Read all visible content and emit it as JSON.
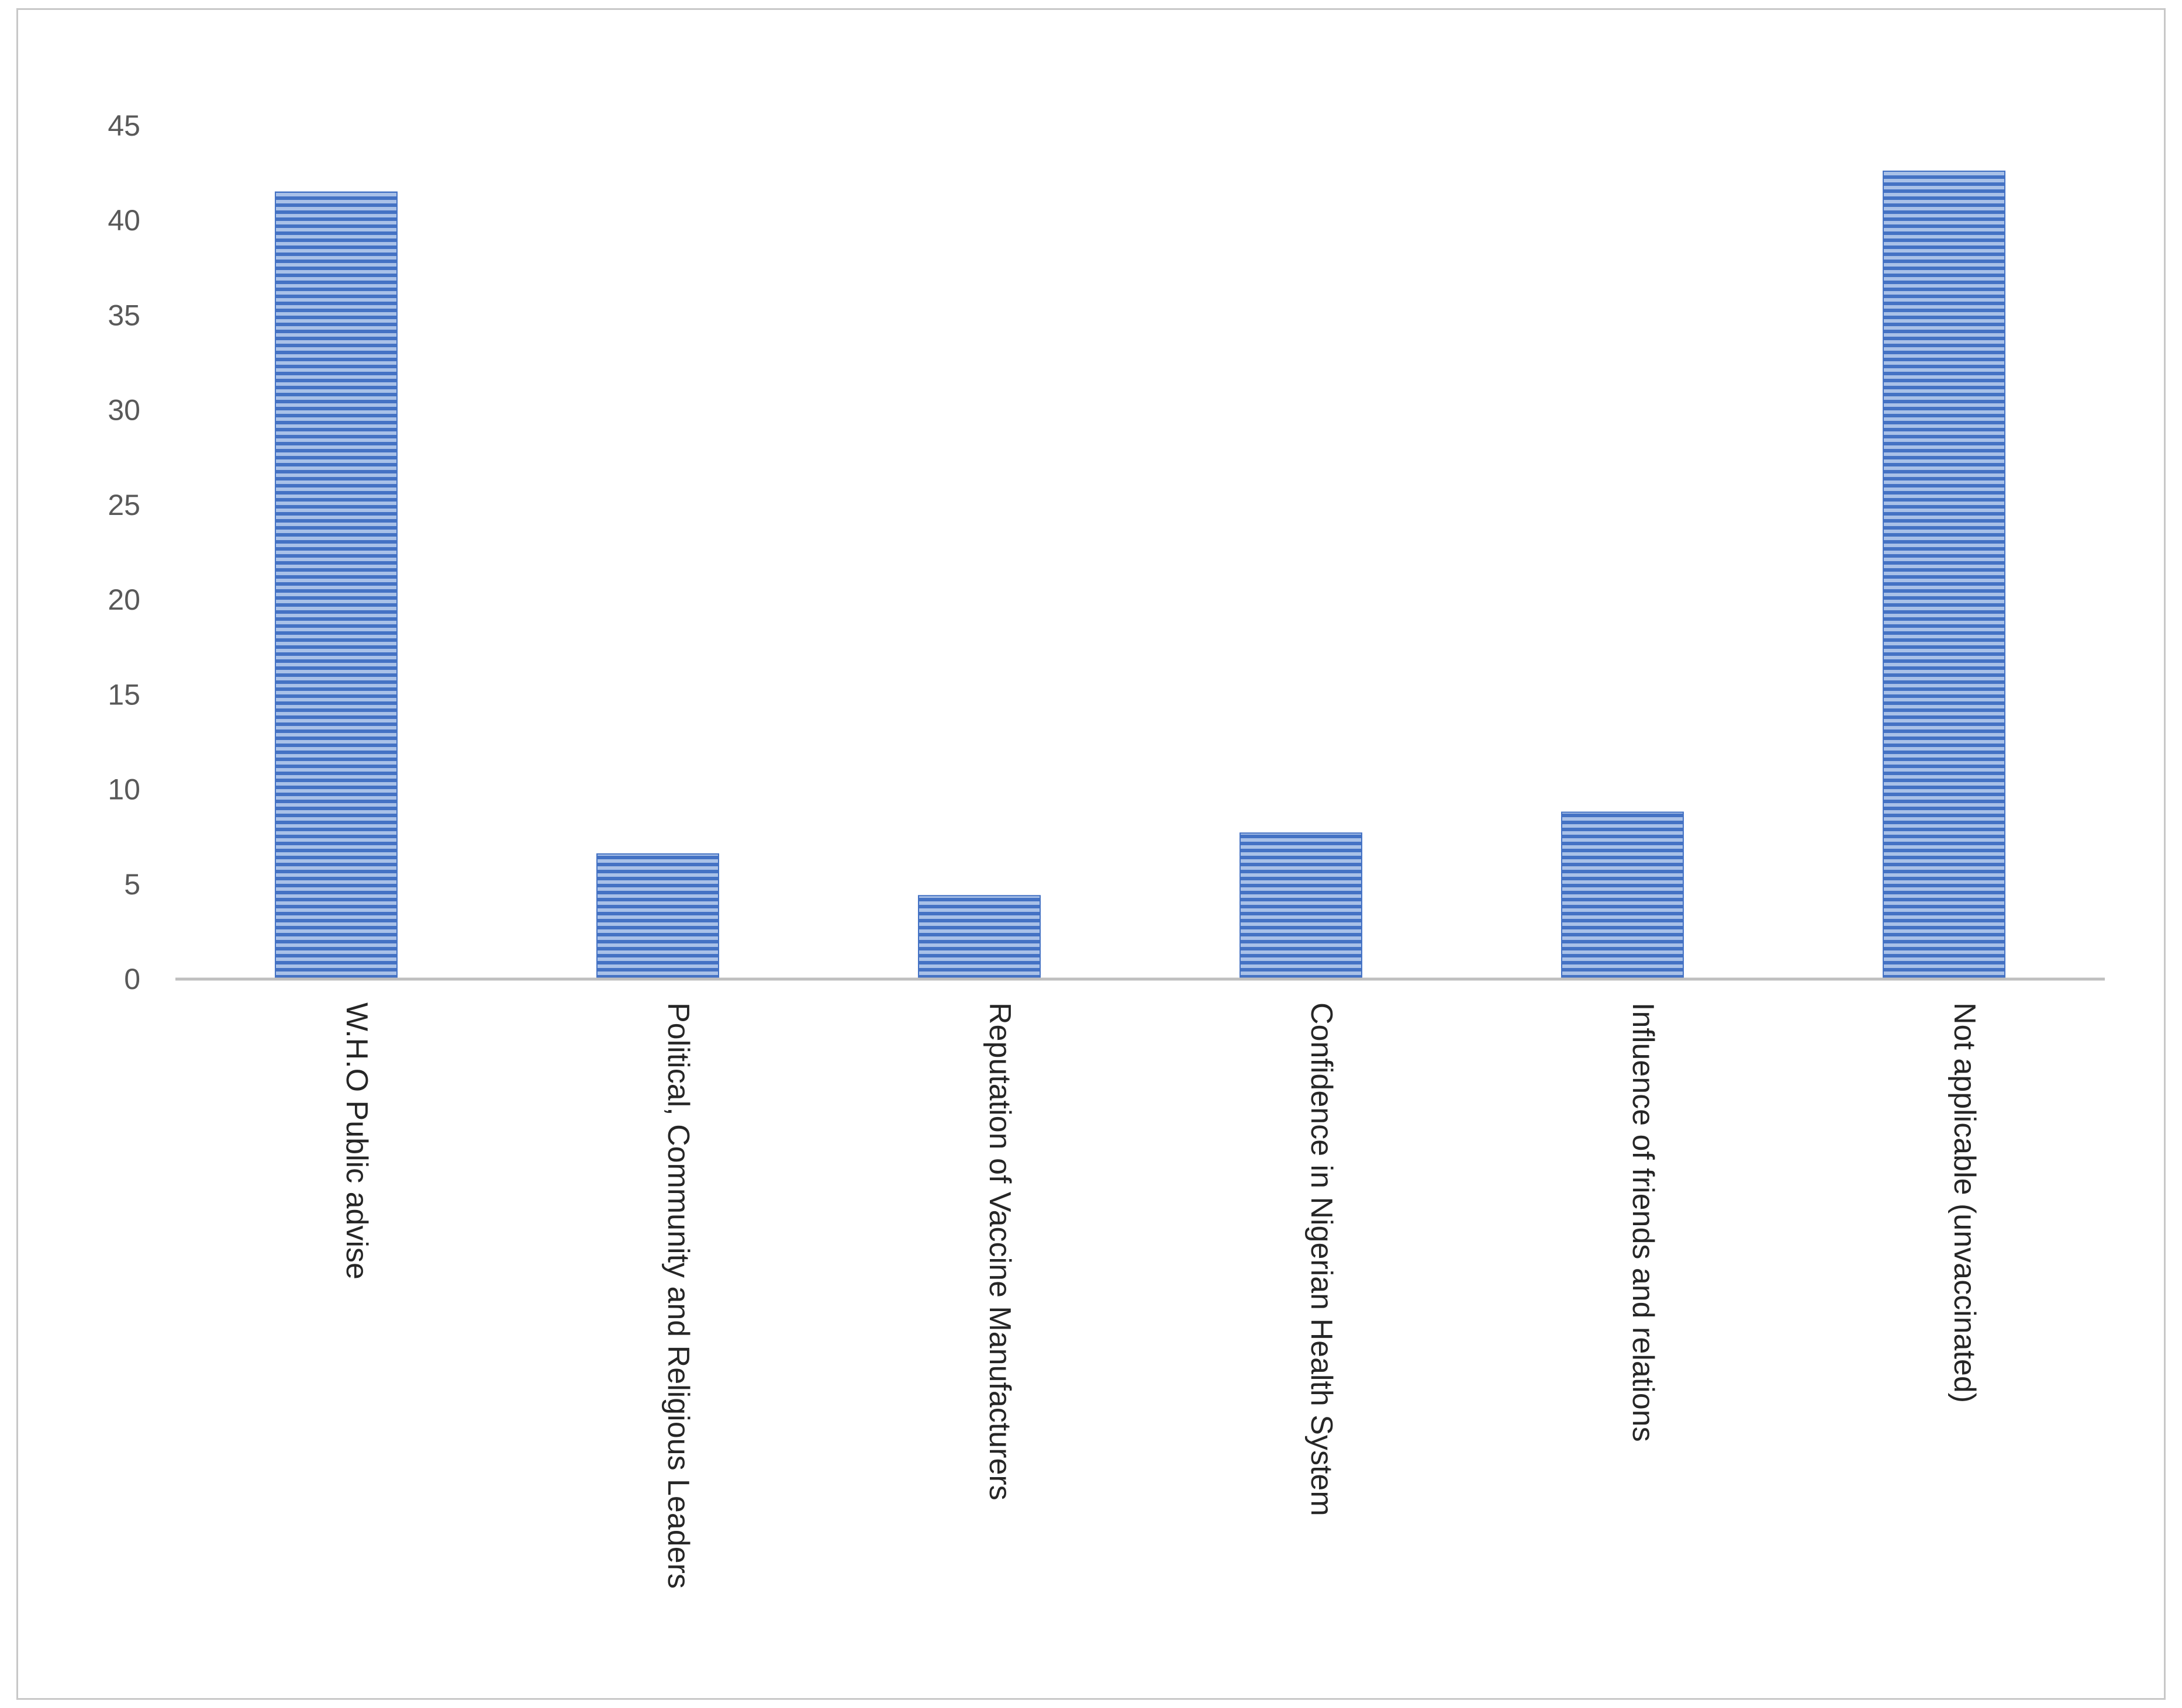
{
  "chart_data": {
    "type": "bar",
    "categories": [
      "W.H.O Public advise",
      "Political, Community and Religious Leaders",
      "Reputation of Vaccine Manufacturers",
      "Confidence in Nigerian Health System",
      "Influence of friends and relations",
      "Not applicable (unvaccinated)"
    ],
    "values": [
      41.5,
      6.6,
      4.4,
      7.7,
      8.8,
      42.6
    ],
    "title": "",
    "xlabel": "",
    "ylabel": "",
    "ylim": [
      0,
      45
    ],
    "yticks": [
      "0",
      "5",
      "10",
      "15",
      "20",
      "25",
      "30",
      "35",
      "40",
      "45"
    ],
    "grid": false,
    "legend": "none",
    "colors": {
      "bar": "#4472c4",
      "bar_stripe": "#a9c1e8",
      "axis": "#bfbfbf"
    }
  }
}
